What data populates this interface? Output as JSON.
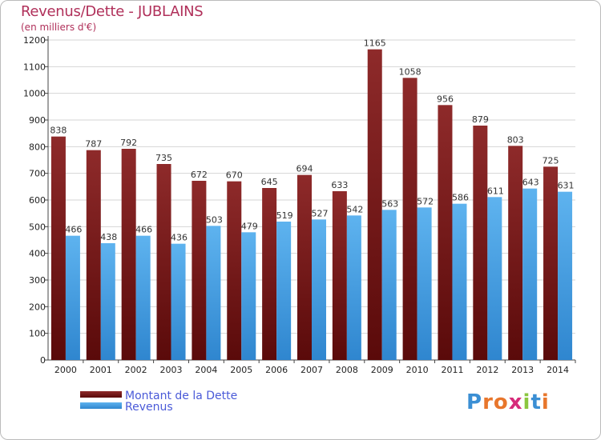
{
  "title": "Revenus/Dette - JUBLAINS",
  "subtitle": "(en milliers d'€)",
  "logo_text": "Proxiti",
  "chart_data": {
    "type": "bar",
    "categories": [
      "2000",
      "2001",
      "2002",
      "2003",
      "2004",
      "2005",
      "2006",
      "2007",
      "2008",
      "2009",
      "2010",
      "2011",
      "2012",
      "2013",
      "2014"
    ],
    "series": [
      {
        "name": "Montant de la Dette",
        "color": "#8b1a1a",
        "values": [
          838,
          787,
          792,
          735,
          672,
          670,
          645,
          694,
          633,
          1165,
          1058,
          956,
          879,
          803,
          725
        ]
      },
      {
        "name": "Revenus",
        "color": "#4aa3e6",
        "values": [
          466,
          438,
          466,
          436,
          503,
          479,
          519,
          527,
          542,
          563,
          572,
          586,
          611,
          643,
          631
        ]
      }
    ],
    "ylim": [
      0,
      1200
    ],
    "yticks": [
      0,
      100,
      200,
      300,
      400,
      500,
      600,
      700,
      800,
      900,
      1000,
      1100,
      1200
    ],
    "grid": true,
    "legend": "bottom-left"
  }
}
